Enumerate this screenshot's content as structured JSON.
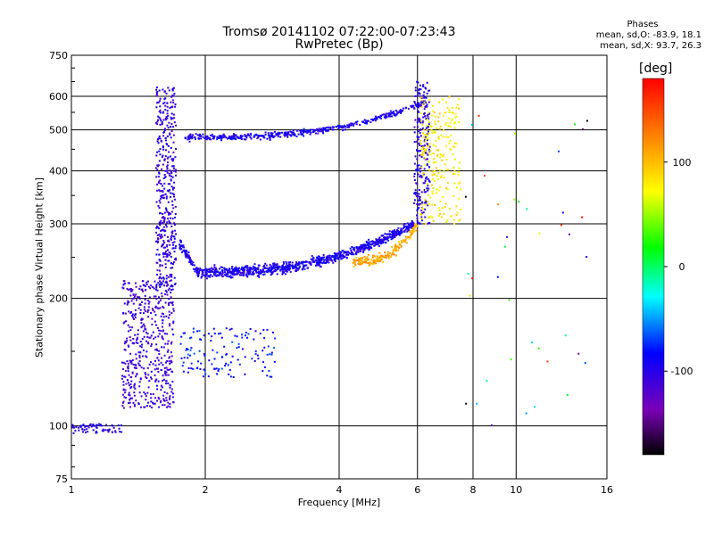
{
  "chart_data": {
    "type": "scatter",
    "title": "Tromsø 20141102 07:22:00-07:23:43",
    "subtitle": "RwPretec (Bp)",
    "xlabel": "Frequency [MHz]",
    "ylabel": "Stationary phase Virtual Height [km]",
    "x_scale": "log",
    "y_scale": "log",
    "xlim": [
      1,
      16
    ],
    "ylim": [
      75,
      750
    ],
    "x_ticks": [
      {
        "value": 1,
        "label": "1"
      },
      {
        "value": 2,
        "label": "2"
      },
      {
        "value": 4,
        "label": "4"
      },
      {
        "value": 6,
        "label": "6"
      },
      {
        "value": 8,
        "label": "8"
      },
      {
        "value": 10,
        "label": "10"
      },
      {
        "value": 16,
        "label": "16"
      }
    ],
    "y_ticks": [
      {
        "value": 75,
        "label": "75"
      },
      {
        "value": 100,
        "label": "100"
      },
      {
        "value": 200,
        "label": "200"
      },
      {
        "value": 300,
        "label": "300"
      },
      {
        "value": 400,
        "label": "400"
      },
      {
        "value": 500,
        "label": "500"
      },
      {
        "value": 600,
        "label": "600"
      },
      {
        "value": 750,
        "label": "750"
      }
    ],
    "grid": true,
    "phase_stats": {
      "title": "Phases",
      "o_line": "mean, sd,O: -83.9, 18.1",
      "x_line": "mean, sd,X:  93.7, 26.3"
    },
    "colorbar": {
      "label": "[deg]",
      "range": [
        -180,
        180
      ],
      "ticks": [
        {
          "value": 100,
          "label": "100"
        },
        {
          "value": 0,
          "label": "0"
        },
        {
          "value": -100,
          "label": "-100"
        }
      ],
      "colors": [
        "#000000",
        "#7a00b8",
        "#0000ff",
        "#00ffff",
        "#00ff00",
        "#ffff00",
        "#ff8000",
        "#ff0000"
      ]
    },
    "traces": [
      {
        "name": "",
        "kind": "low-e",
        "fmin": 1.0,
        "fmax": 1.3,
        "hmin": 96,
        "hmax": 101,
        "phase": -100,
        "count": 70
      },
      {
        "name": "",
        "kind": "e-layer-body",
        "fmin": 1.3,
        "fmax": 1.7,
        "hmin": 110,
        "hmax": 220,
        "phase": -110,
        "count": 500
      },
      {
        "name": "",
        "kind": "e-layer-cusp",
        "fmin": 1.55,
        "fmax": 1.72,
        "hmin": 210,
        "hmax": 630,
        "phase": -105,
        "count": 420
      },
      {
        "name": "",
        "kind": "e-spread",
        "fmin": 1.75,
        "fmax": 2.9,
        "hmin": 130,
        "hmax": 170,
        "phase": -80,
        "count": 130
      },
      {
        "name": "",
        "kind": "f-lower-trace",
        "fmin": 1.75,
        "fmax": 5.9,
        "hmin": 230,
        "hmax": 300,
        "phase": -95,
        "count": 950
      },
      {
        "name": "",
        "kind": "f-lower-x",
        "fmin": 4.3,
        "fmax": 6.0,
        "hmin": 245,
        "hmax": 300,
        "phase": 110,
        "count": 200
      },
      {
        "name": "",
        "kind": "f-upper-trace",
        "fmin": 1.8,
        "fmax": 6.2,
        "hmin": 470,
        "hmax": 640,
        "phase": -95,
        "count": 450
      },
      {
        "name": "",
        "kind": "f-cusp-o",
        "fmin": 5.9,
        "fmax": 6.4,
        "hmin": 300,
        "hmax": 650,
        "phase": -100,
        "count": 220
      },
      {
        "name": "",
        "kind": "f-cusp-x",
        "fmin": 6.1,
        "fmax": 7.5,
        "hmin": 300,
        "hmax": 600,
        "phase": 80,
        "count": 240
      },
      {
        "name": "",
        "kind": "noise",
        "fmin": 7.5,
        "fmax": 14.5,
        "hmin": 100,
        "hmax": 560,
        "phase": 0,
        "count": 40
      }
    ]
  }
}
